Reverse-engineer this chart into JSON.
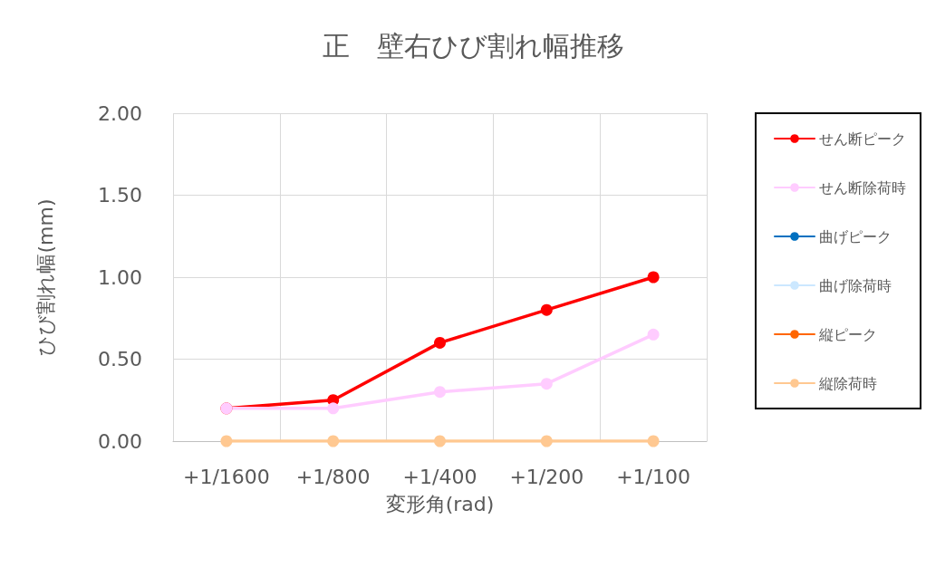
{
  "chart_data": {
    "type": "line",
    "title": "正　壁右ひび割れ幅推移",
    "xlabel": "変形角(rad)",
    "ylabel": "ひび割れ幅(mm)",
    "categories": [
      "+1/1600",
      "+1/800",
      "+1/400",
      "+1/200",
      "+1/100"
    ],
    "series": [
      {
        "name": "せん断ピーク",
        "color": "#ff0000",
        "values": [
          0.2,
          0.25,
          0.6,
          0.8,
          1.0
        ]
      },
      {
        "name": "せん断除荷時",
        "color": "#ffccff",
        "values": [
          0.2,
          0.2,
          0.3,
          0.35,
          0.65
        ]
      },
      {
        "name": "曲げピーク",
        "color": "#0070c0",
        "values": [
          null,
          null,
          null,
          null,
          null
        ]
      },
      {
        "name": "曲げ除荷時",
        "color": "#cce8ff",
        "values": [
          null,
          null,
          null,
          null,
          null
        ]
      },
      {
        "name": "縦ピーク",
        "color": "#ff6600",
        "values": [
          null,
          null,
          null,
          null,
          null
        ]
      },
      {
        "name": "縦除荷時",
        "color": "#ffc891",
        "values": [
          0,
          0,
          0,
          0,
          0
        ]
      }
    ],
    "ylim": [
      0,
      2
    ],
    "yticks": [
      {
        "value": 0,
        "label": "0.00"
      },
      {
        "value": 0.5,
        "label": "0.50"
      },
      {
        "value": 1,
        "label": "1.00"
      },
      {
        "value": 1.5,
        "label": "1.50"
      },
      {
        "value": 2,
        "label": "2.00"
      }
    ],
    "grid": true,
    "legend": "right",
    "marker": "circle",
    "line_style": "solid"
  }
}
